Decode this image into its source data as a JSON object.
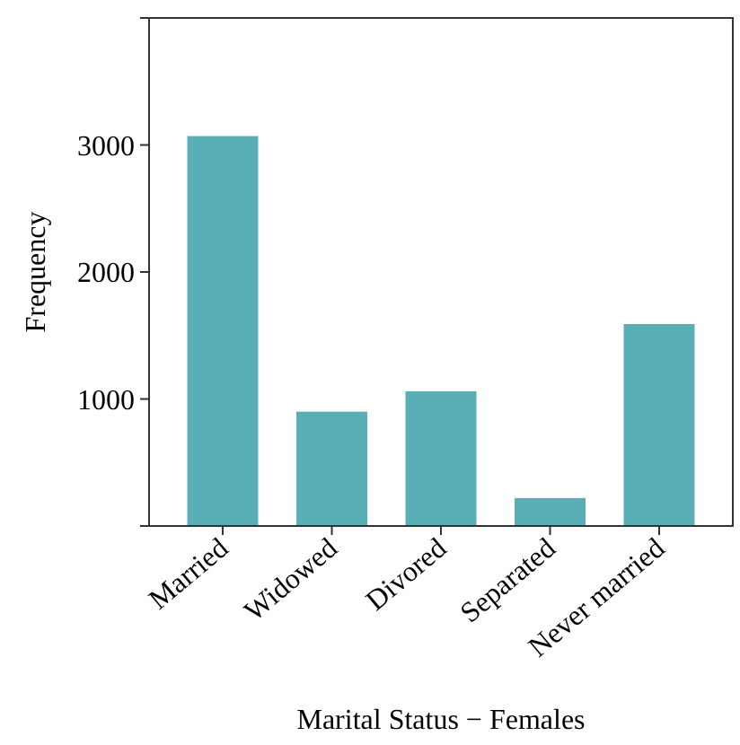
{
  "chart_data": {
    "type": "bar",
    "xlabel": "Marital Status − Females",
    "ylabel": "Frequency",
    "categories": [
      "Married",
      "Widowed",
      "Divored",
      "Separated",
      "Never married"
    ],
    "values": [
      3070,
      900,
      1060,
      220,
      1590
    ],
    "color": "#5aaeb5",
    "ylim": [
      0,
      4000
    ],
    "yticks": [
      {
        "value": 0,
        "label": null
      },
      1000,
      2000,
      3000,
      {
        "value": 4000,
        "label": null
      }
    ],
    "grid": false
  }
}
